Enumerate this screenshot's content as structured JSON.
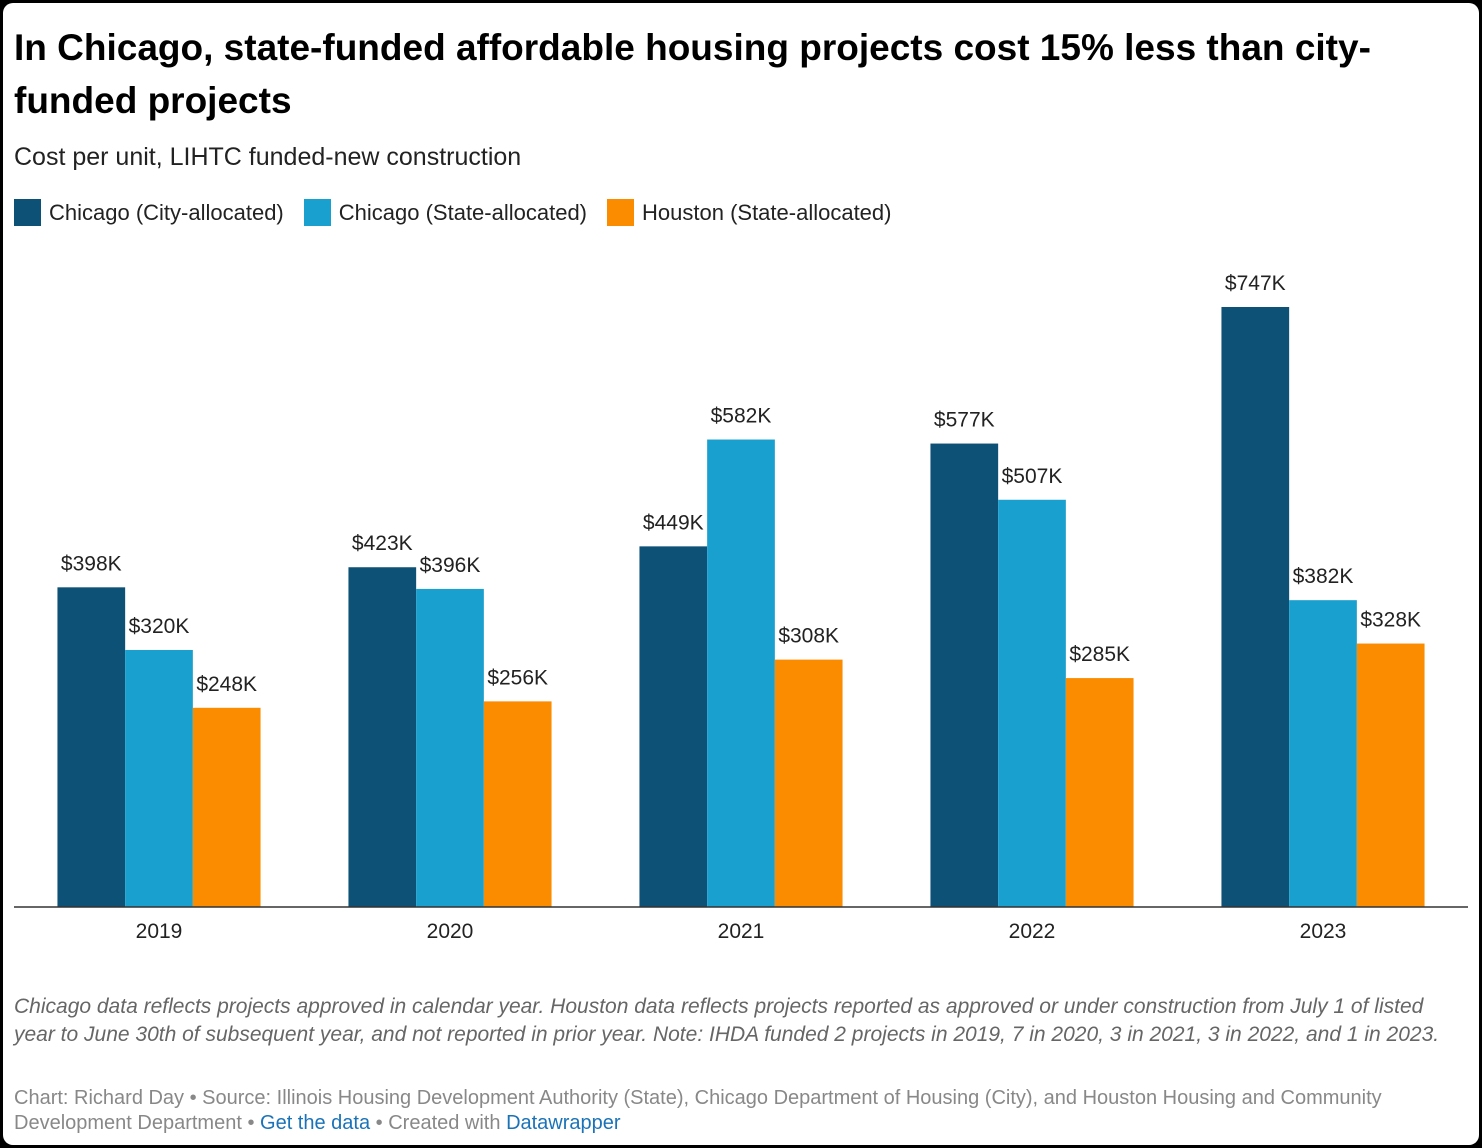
{
  "chart_data": {
    "type": "bar",
    "title": "In Chicago, state-funded affordable housing projects cost 15% less than city-funded projects",
    "subtitle": "Cost per unit, LIHTC funded-new construction",
    "categories": [
      "2019",
      "2020",
      "2021",
      "2022",
      "2023"
    ],
    "series": [
      {
        "name": "Chicago (City-allocated)",
        "color": "#0e5176",
        "values": [
          398,
          423,
          449,
          577,
          747
        ],
        "value_labels": [
          "$398K",
          "$423K",
          "$449K",
          "$577K",
          "$747K"
        ]
      },
      {
        "name": "Chicago (State-allocated)",
        "color": "#1aa0cf",
        "values": [
          320,
          396,
          582,
          507,
          382
        ],
        "value_labels": [
          "$320K",
          "$396K",
          "$582K",
          "$507K",
          "$382K"
        ]
      },
      {
        "name": "Houston (State-allocated)",
        "color": "#fb8c00",
        "values": [
          248,
          256,
          308,
          285,
          328
        ],
        "value_labels": [
          "$248K",
          "$256K",
          "$308K",
          "$285K",
          "$328K"
        ]
      }
    ],
    "note": "Chicago data reflects projects approved in calendar year. Houston data reflects projects reported as approved or under construction from July 1 of listed year to June 30th of subsequent year, and not reported in prior year. Note: IHDA funded 2 projects in 2019, 7 in 2020, 3 in 2021, 3 in 2022, and 1 in 2023.",
    "credits": "Chart: Richard Day • Source: Illinois Housing Development Authority (State), Chicago Department of Housing (City), and Houston Housing and Community Development Department  •",
    "get_data": "Get the data",
    "created_with": "• Created with",
    "datawrapper": "Datawrapper"
  }
}
